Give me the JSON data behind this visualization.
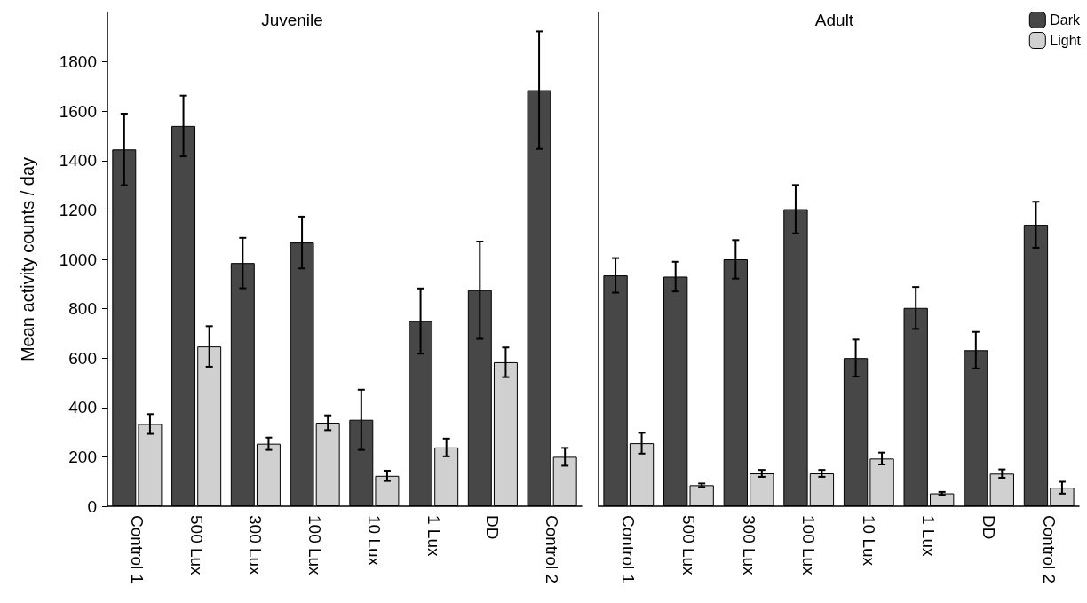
{
  "chart_data": [
    {
      "type": "bar",
      "title": "Juvenile",
      "ylabel": "Mean activity counts / day",
      "categories": [
        "Control 1",
        "500 Lux",
        "300 Lux",
        "100 Lux",
        "10 Lux",
        "1 Lux",
        "DD",
        "Control 2"
      ],
      "series": [
        {
          "color": "#474747",
          "values": [
            1445,
            1540,
            985,
            1068,
            350,
            750,
            875,
            1685
          ],
          "errors": [
            145,
            123,
            102,
            105,
            122,
            132,
            197,
            238
          ]
        },
        {
          "color": "#d0d0d0",
          "values": [
            333,
            647,
            253,
            338,
            123,
            238,
            583,
            200
          ],
          "errors": [
            40,
            82,
            25,
            30,
            21,
            36,
            60,
            36
          ]
        }
      ],
      "ylim": [
        0,
        2000
      ],
      "yticks": [
        0,
        200,
        400,
        600,
        800,
        1000,
        1200,
        1400,
        1600,
        1800
      ],
      "grid": false,
      "legend": false
    },
    {
      "type": "bar",
      "title": "Adult",
      "categories": [
        "Control 1",
        "500 Lux",
        "300 Lux",
        "100 Lux",
        "10 Lux",
        "1 Lux",
        "DD",
        "Control 2"
      ],
      "series": [
        {
          "name": "Dark",
          "color": "#474747",
          "values": [
            935,
            930,
            1000,
            1203,
            600,
            803,
            632,
            1140
          ],
          "errors": [
            70,
            60,
            78,
            98,
            75,
            85,
            74,
            93
          ]
        },
        {
          "name": "Light",
          "color": "#d0d0d0",
          "values": [
            255,
            85,
            133,
            133,
            193,
            52,
            132,
            75
          ],
          "errors": [
            42,
            7,
            14,
            14,
            24,
            6,
            17,
            24
          ]
        }
      ],
      "ylim": [
        0,
        2000
      ],
      "yticks": [
        0,
        200,
        400,
        600,
        800,
        1000,
        1200,
        1400,
        1600,
        1800
      ],
      "grid": false,
      "legend": "top right",
      "tick_labels": "x"
    }
  ]
}
